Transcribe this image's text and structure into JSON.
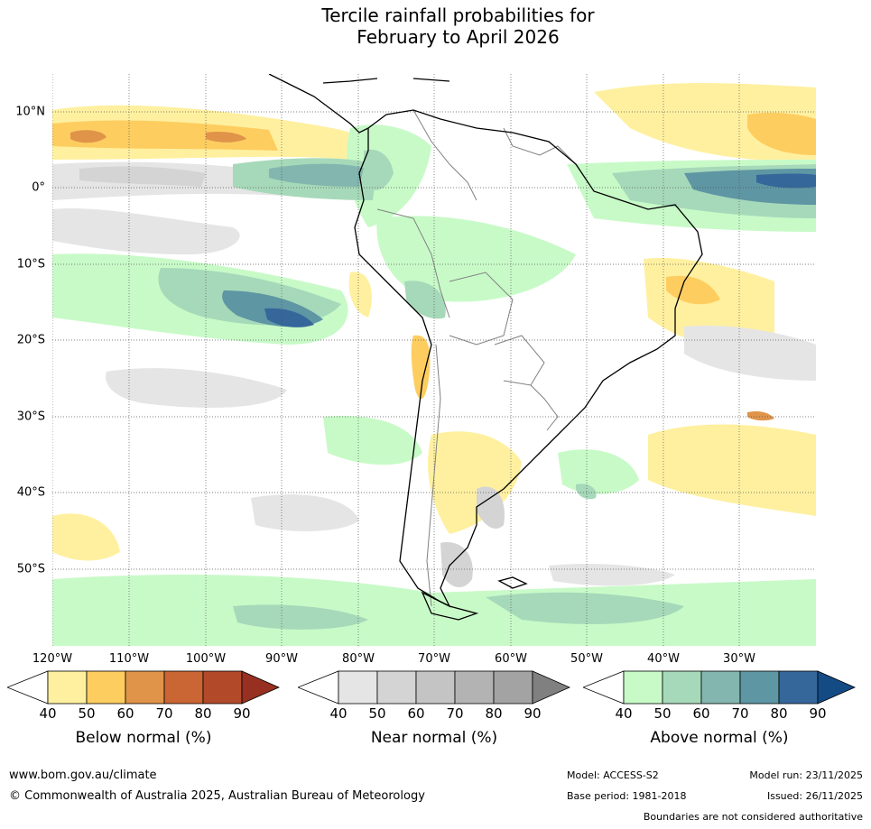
{
  "title": {
    "line1": "Tercile rainfall probabilities for",
    "line2": "February to April 2026"
  },
  "map": {
    "lat_labels": [
      "10°N",
      "0°",
      "10°S",
      "20°S",
      "30°S",
      "40°S",
      "50°S"
    ],
    "lon_labels": [
      "120°W",
      "110°W",
      "100°W",
      "90°W",
      "80°W",
      "70°W",
      "60°W",
      "50°W",
      "40°W",
      "30°W"
    ]
  },
  "colorbars": {
    "below": {
      "title": "Below normal (%)",
      "ticks": [
        "40",
        "50",
        "60",
        "70",
        "80",
        "90"
      ],
      "colors": [
        "#fff0a0",
        "#fecd60",
        "#df944a",
        "#ca6534",
        "#b24a2a",
        "#973020"
      ]
    },
    "near": {
      "title": "Near normal (%)",
      "ticks": [
        "40",
        "50",
        "60",
        "70",
        "80",
        "90"
      ],
      "colors": [
        "#e5e5e5",
        "#d4d4d4",
        "#c4c4c4",
        "#b3b3b3",
        "#a3a3a3",
        "#808080"
      ]
    },
    "above": {
      "title": "Above normal (%)",
      "ticks": [
        "40",
        "50",
        "60",
        "70",
        "80",
        "90"
      ],
      "colors": [
        "#c8fac8",
        "#a6d9b9",
        "#82b6ae",
        "#5e96a4",
        "#35679b",
        "#144b85"
      ]
    }
  },
  "footer": {
    "url": "www.bom.gov.au/climate",
    "copyright": "© Commonwealth of Australia 2025, Australian Bureau of Meteorology",
    "model": "Model: ACCESS-S2",
    "base_period": "Base period: 1981-2018",
    "model_run": "Model run: 23/11/2025",
    "issued": "Issued: 26/11/2025",
    "disclaimer": "Boundaries are not considered authoritative"
  }
}
